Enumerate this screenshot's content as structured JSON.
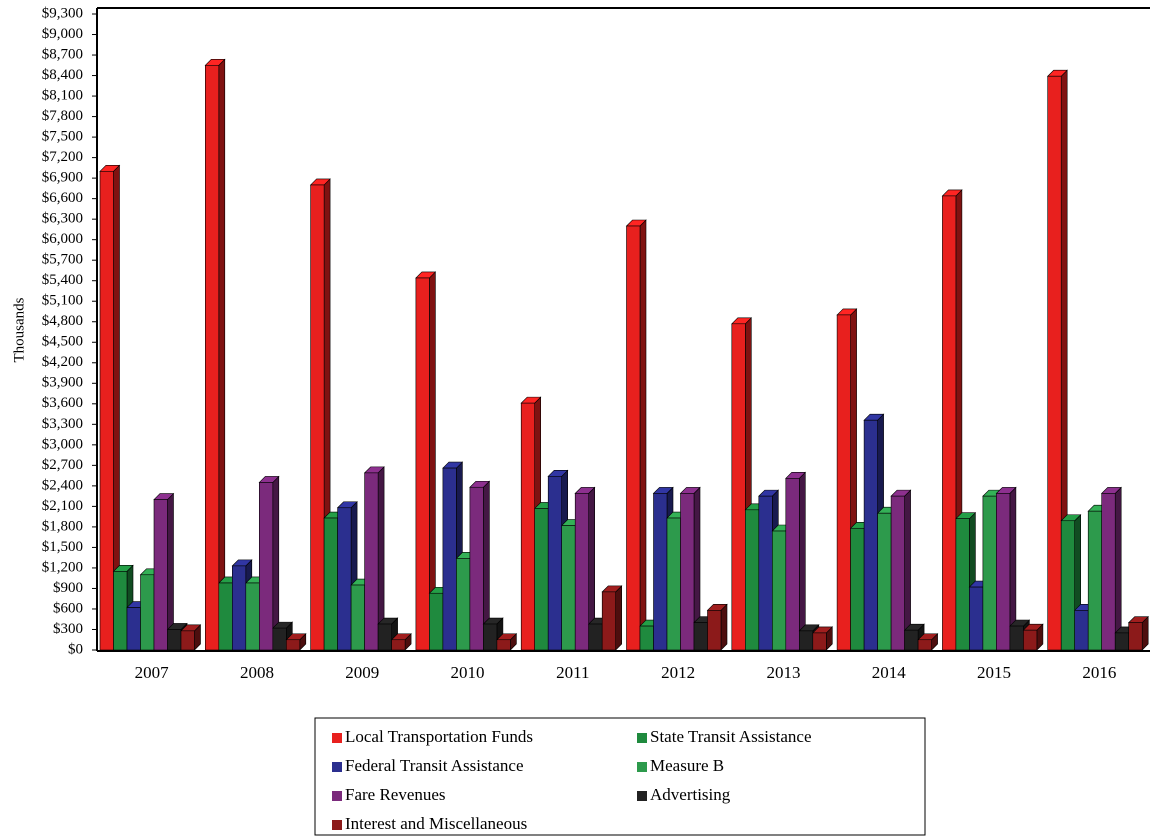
{
  "chart_data": {
    "type": "bar3d",
    "y_axis_label": "Thousands",
    "categories": [
      "2007",
      "2008",
      "2009",
      "2010",
      "2011",
      "2012",
      "2013",
      "2014",
      "2015",
      "2016"
    ],
    "series": [
      {
        "name": "Local Transportation Funds",
        "color": "#e8201e",
        "values": [
          7000,
          8550,
          6800,
          5440,
          3610,
          6200,
          4770,
          4900,
          6640,
          8390
        ]
      },
      {
        "name": "State Transit Assistance",
        "color": "#1f8a3e",
        "values": [
          1150,
          980,
          1930,
          830,
          2070,
          350,
          2050,
          1780,
          1920,
          1890
        ]
      },
      {
        "name": "Federal Transit Assistance",
        "color": "#2b2f8f",
        "values": [
          620,
          1230,
          2080,
          2660,
          2540,
          2290,
          2250,
          3360,
          920,
          580
        ]
      },
      {
        "name": "Measure B",
        "color": "#2d9a4c",
        "values": [
          1100,
          980,
          950,
          1340,
          1820,
          1930,
          1740,
          2000,
          2250,
          2030
        ]
      },
      {
        "name": "Fare Revenues",
        "color": "#7b2a7c",
        "values": [
          2200,
          2450,
          2590,
          2380,
          2290,
          2290,
          2510,
          2250,
          2290,
          2290
        ]
      },
      {
        "name": "Advertising",
        "color": "#222222",
        "values": [
          300,
          320,
          380,
          380,
          380,
          400,
          280,
          290,
          350,
          250
        ]
      },
      {
        "name": "Interest and Miscellaneous",
        "color": "#8c1a1a",
        "values": [
          280,
          150,
          150,
          150,
          850,
          580,
          250,
          150,
          290,
          400
        ]
      }
    ],
    "ylim": [
      0,
      9300
    ],
    "yticks": [
      {
        "value": 0,
        "label": "$0"
      },
      {
        "value": 300,
        "label": "$300"
      },
      {
        "value": 600,
        "label": "$600"
      },
      {
        "value": 900,
        "label": "$900"
      },
      {
        "value": 1200,
        "label": "$1,200"
      },
      {
        "value": 1500,
        "label": "$1,500"
      },
      {
        "value": 1800,
        "label": "$1,800"
      },
      {
        "value": 2100,
        "label": "$2,100"
      },
      {
        "value": 2400,
        "label": "$2,400"
      },
      {
        "value": 2700,
        "label": "$2,700"
      },
      {
        "value": 3000,
        "label": "$3,000"
      },
      {
        "value": 3300,
        "label": "$3,300"
      },
      {
        "value": 3600,
        "label": "$3,600"
      },
      {
        "value": 3900,
        "label": "$3,900"
      },
      {
        "value": 4200,
        "label": "$4,200"
      },
      {
        "value": 4500,
        "label": "$4,500"
      },
      {
        "value": 4800,
        "label": "$4,800"
      },
      {
        "value": 5100,
        "label": "$5,100"
      },
      {
        "value": 5400,
        "label": "$5,400"
      },
      {
        "value": 5700,
        "label": "$5,700"
      },
      {
        "value": 6000,
        "label": "$6,000"
      },
      {
        "value": 6300,
        "label": "$6,300"
      },
      {
        "value": 6600,
        "label": "$6,600"
      },
      {
        "value": 6900,
        "label": "$6,900"
      },
      {
        "value": 7200,
        "label": "$7,200"
      },
      {
        "value": 7500,
        "label": "$7,500"
      },
      {
        "value": 7800,
        "label": "$7,800"
      },
      {
        "value": 8100,
        "label": "$8,100"
      },
      {
        "value": 8400,
        "label": "$8,400"
      },
      {
        "value": 8700,
        "label": "$8,700"
      },
      {
        "value": 9000,
        "label": "$9,000"
      },
      {
        "value": 9300,
        "label": "$9,300"
      }
    ],
    "grid": false
  }
}
